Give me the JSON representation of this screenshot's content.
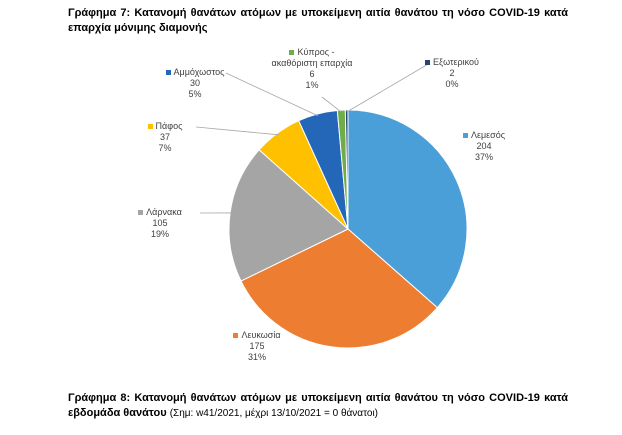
{
  "chart_data": {
    "type": "pie",
    "title": "Γράφημα 7: Κατανομή θανάτων ατόμων με υποκείμενη αιτία θανάτου τη νόσο COVID-19 κατά επαρχία μόνιμης διαμονής",
    "categories": [
      "Λεμεσός",
      "Λευκωσία",
      "Λάρνακα",
      "Πάφος",
      "Αμμόχωστος",
      "Κύπρος - ακαθόριστη επαρχία",
      "Εξωτερικού"
    ],
    "values": [
      204,
      175,
      105,
      37,
      30,
      6,
      2
    ],
    "shares": [
      {
        "value": 37,
        "label": "37%"
      },
      {
        "value": 31,
        "label": "31%"
      },
      {
        "value": 19,
        "label": "19%"
      },
      {
        "value": 7,
        "label": "7%"
      },
      {
        "value": 5,
        "label": "5%"
      },
      {
        "value": 1,
        "label": "1%"
      },
      {
        "value": 0,
        "label": "0%"
      }
    ],
    "colors": [
      "#4a9fd8",
      "#ed7d31",
      "#a5a5a5",
      "#ffc000",
      "#2467b8",
      "#70ad47",
      "#264478"
    ]
  },
  "next_caption": {
    "title": "Γράφημα 8: Κατανομή θανάτων ατόμων με υποκείμενη αιτία θανάτου τη νόσο COVID-19 κατά εβδομάδα θανάτου",
    "note": "(Σημ: w41/2021, μέχρι 13/10/2021 = 0 θάνατοι)"
  }
}
